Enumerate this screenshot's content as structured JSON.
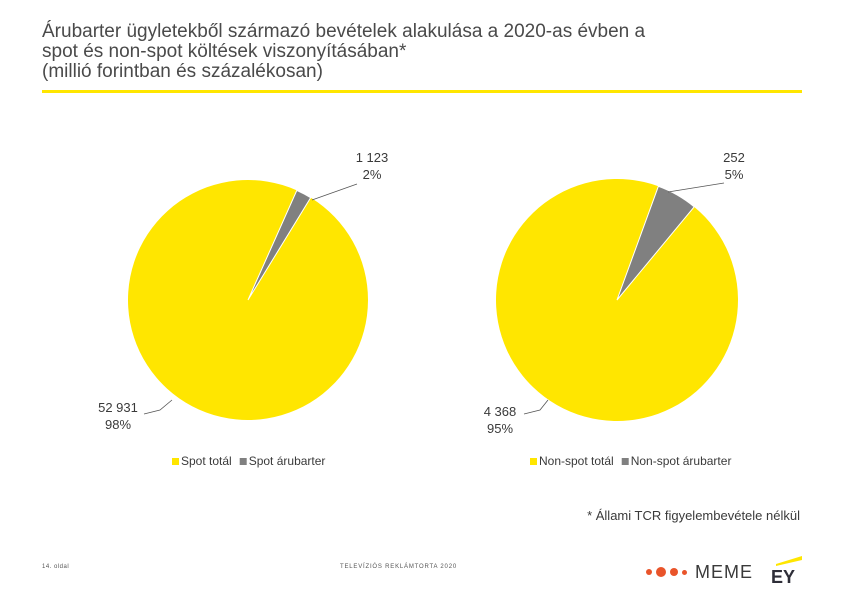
{
  "title": {
    "line1": "Árubarter ügyletekből származó bevételek alakulása a 2020-as évben a",
    "line2": "spot és non-spot költések viszonyításában*",
    "line3": "(millió forintban és százalékosan)"
  },
  "colors": {
    "yellow": "#ffe600",
    "gray": "#808080",
    "accent": "#ffe600"
  },
  "chart_data": [
    {
      "type": "pie",
      "slices": [
        {
          "name": "Spot totál",
          "value": 52931,
          "label": "52 931",
          "percent": "98%",
          "color": "#ffe600"
        },
        {
          "name": "Spot árubarter",
          "value": 1123,
          "label": "1 123",
          "percent": "2%",
          "color": "#808080"
        }
      ],
      "legend": [
        "Spot totál",
        "Spot árubarter"
      ],
      "legend_position": "bottom"
    },
    {
      "type": "pie",
      "slices": [
        {
          "name": "Non-spot totál",
          "value": 4368,
          "label": "4 368",
          "percent": "95%",
          "color": "#ffe600"
        },
        {
          "name": "Non-spot árubarter",
          "value": 252,
          "label": "252",
          "percent": "5%",
          "color": "#808080"
        }
      ],
      "legend": [
        "Non-spot totál",
        "Non-spot árubarter"
      ],
      "legend_position": "bottom"
    }
  ],
  "footnote": "* Állami TCR figyelembevétele nélkül",
  "footer": {
    "page": "14. oldal",
    "report": "TELEVÍZIÓS REKLÁMTORTA 2020",
    "logo_meme": "MEME",
    "logo_ey": "EY"
  }
}
